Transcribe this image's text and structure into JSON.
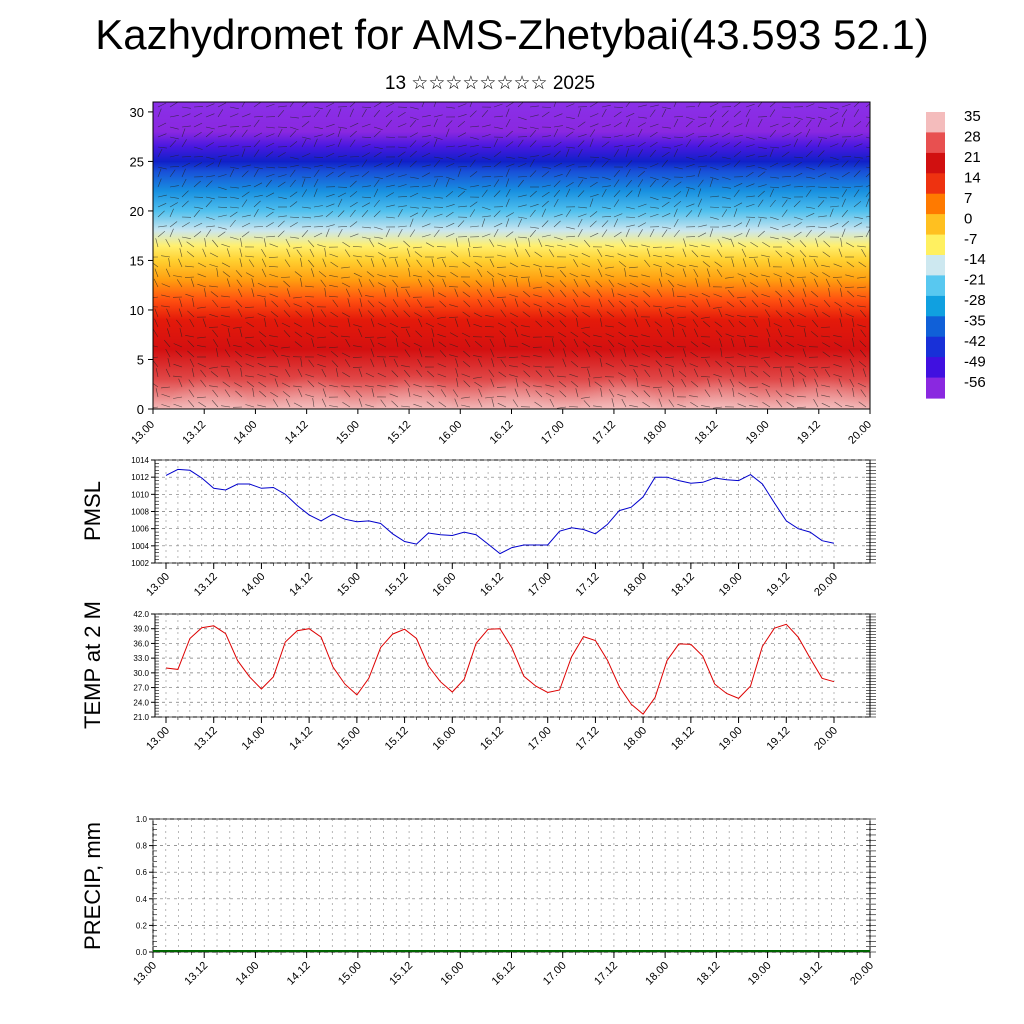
{
  "title": "Kazhydromet for AMS-Zhetybai(43.593 52.1)",
  "subtitle": "13 ☆☆☆☆☆☆☆☆ 2025",
  "time_labels": [
    "13.00",
    "13.12",
    "14.00",
    "14.12",
    "15.00",
    "15.12",
    "16.00",
    "16.12",
    "17.00",
    "17.12",
    "18.00",
    "18.12",
    "19.00",
    "19.12",
    "20.00"
  ],
  "colorbar": {
    "labels": [
      "35",
      "28",
      "21",
      "14",
      "7",
      "0",
      "-7",
      "-14",
      "-21",
      "-28",
      "-35",
      "-42",
      "-49",
      "-56"
    ],
    "colors": [
      "#f4bcbc",
      "#e85050",
      "#d11010",
      "#ee3210",
      "#ff7a00",
      "#ffc020",
      "#fff060",
      "#cde8f0",
      "#58c8f0",
      "#10a0e0",
      "#1060d8",
      "#1830d8",
      "#4010e0",
      "#8a28e0"
    ]
  },
  "chart_data": [
    {
      "type": "heatmap",
      "description_label": "",
      "y_ticks": [
        "0",
        "5",
        "10",
        "15",
        "20",
        "25",
        "30"
      ],
      "ylim": [
        0,
        31
      ],
      "x_ticks": [
        "13.00",
        "13.12",
        "14.00",
        "14.12",
        "15.00",
        "15.12",
        "16.00",
        "16.12",
        "17.00",
        "17.12",
        "18.00",
        "18.12",
        "19.00",
        "19.12",
        "20.00"
      ],
      "legend_placement": "right"
    },
    {
      "type": "line",
      "ylabel": "PMSL",
      "ylim": [
        1002,
        1014
      ],
      "y_ticks": [
        "1014",
        "1012",
        "1010",
        "1008",
        "1006",
        "1004",
        "1002"
      ],
      "x_ticks": [
        "13.00",
        "13.12",
        "14.00",
        "14.12",
        "15.00",
        "15.12",
        "16.00",
        "16.12",
        "17.00",
        "17.12",
        "18.00",
        "18.12",
        "19.00",
        "19.12",
        "20.00"
      ],
      "color": "#0000cc",
      "grid": true,
      "values": [
        1012.2,
        1012.9,
        1012.8,
        1011.9,
        1010.7,
        1010.5,
        1011.2,
        1011.2,
        1010.7,
        1010.8,
        1010.0,
        1008.7,
        1007.6,
        1006.9,
        1007.7,
        1007.1,
        1006.8,
        1006.9,
        1006.6,
        1005.4,
        1004.5,
        1004.2,
        1005.5,
        1005.3,
        1005.2,
        1005.6,
        1005.3,
        1004.2,
        1003.1,
        1003.8,
        1004.1,
        1004.1,
        1004.1,
        1005.7,
        1006.1,
        1005.9,
        1005.4,
        1006.5,
        1008.1,
        1008.5,
        1009.7,
        1012.0,
        1012.0,
        1011.6,
        1011.3,
        1011.4,
        1011.9,
        1011.7,
        1011.6,
        1012.3,
        1011.2,
        1009.0,
        1006.9,
        1006.0,
        1005.6,
        1004.6,
        1004.3
      ]
    },
    {
      "type": "line",
      "ylabel": "TEMP at 2 M",
      "ylim": [
        21.0,
        42.0
      ],
      "y_ticks": [
        "42.0",
        "39.0",
        "36.0",
        "33.0",
        "30.0",
        "27.0",
        "24.0",
        "21.0"
      ],
      "x_ticks": [
        "13.00",
        "13.12",
        "14.00",
        "14.12",
        "15.00",
        "15.12",
        "16.00",
        "16.12",
        "17.00",
        "17.12",
        "18.00",
        "18.12",
        "19.00",
        "19.12",
        "20.00"
      ],
      "color": "#dd0000",
      "grid": true,
      "values": [
        31.0,
        30.7,
        37.0,
        39.2,
        39.6,
        38.0,
        32.5,
        29.2,
        26.7,
        29.2,
        36.3,
        38.6,
        39.0,
        37.3,
        31.2,
        27.7,
        25.5,
        28.9,
        35.2,
        37.9,
        38.9,
        37.0,
        31.4,
        28.2,
        26.1,
        28.7,
        36.0,
        38.9,
        39.0,
        35.1,
        29.3,
        27.3,
        26.0,
        26.5,
        33.3,
        37.4,
        36.6,
        32.6,
        27.2,
        23.6,
        21.6,
        25.0,
        32.5,
        35.9,
        35.8,
        33.4,
        27.7,
        25.8,
        24.8,
        27.3,
        35.4,
        39.1,
        39.9,
        37.3,
        33.0,
        28.9,
        28.2
      ]
    },
    {
      "type": "bar",
      "ylabel": "PRECIP, mm",
      "ylim": [
        0.0,
        1.0
      ],
      "y_ticks": [
        "1.0",
        "0.8",
        "0.6",
        "0.4",
        "0.2",
        "0.0"
      ],
      "x_ticks": [
        "13.00",
        "13.12",
        "14.00",
        "14.12",
        "15.00",
        "15.12",
        "16.00",
        "16.12",
        "17.00",
        "17.12",
        "18.00",
        "18.12",
        "19.00",
        "19.12",
        "20.00"
      ],
      "color": "#006400",
      "grid": true,
      "values": [
        0,
        0,
        0,
        0,
        0,
        0,
        0,
        0,
        0,
        0,
        0,
        0,
        0,
        0,
        0
      ]
    }
  ]
}
